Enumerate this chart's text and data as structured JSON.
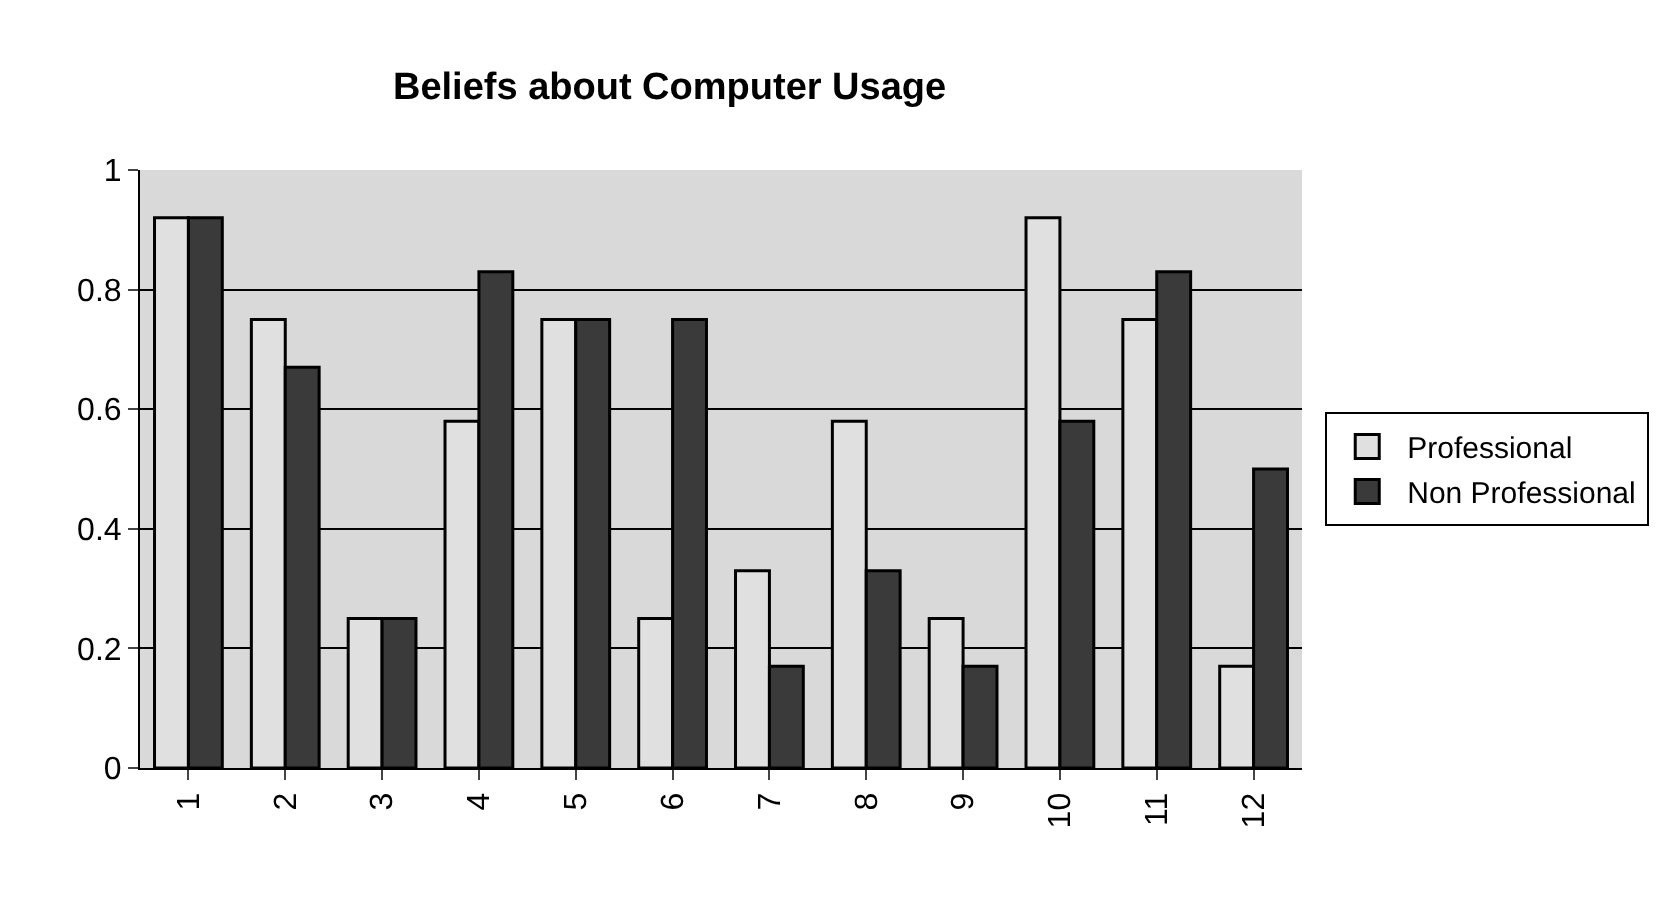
{
  "chart_data": {
    "type": "bar",
    "title": "Beliefs about Computer Usage",
    "categories": [
      "1",
      "2",
      "3",
      "4",
      "5",
      "6",
      "7",
      "8",
      "9",
      "10",
      "11",
      "12"
    ],
    "series": [
      {
        "name": "Professional",
        "color": "#e0e0e0",
        "values": [
          0.92,
          0.75,
          0.25,
          0.58,
          0.75,
          0.25,
          0.33,
          0.58,
          0.25,
          0.92,
          0.75,
          0.17
        ]
      },
      {
        "name": "Non Professional",
        "color": "#3a3a3a",
        "values": [
          0.92,
          0.67,
          0.25,
          0.83,
          0.75,
          0.75,
          0.17,
          0.33,
          0.17,
          0.58,
          0.83,
          0.5
        ]
      }
    ],
    "ylim": [
      0,
      1
    ],
    "yticks": [
      0,
      0.2,
      0.4,
      0.6,
      0.8,
      1
    ],
    "grid": "y",
    "legend": "right"
  }
}
